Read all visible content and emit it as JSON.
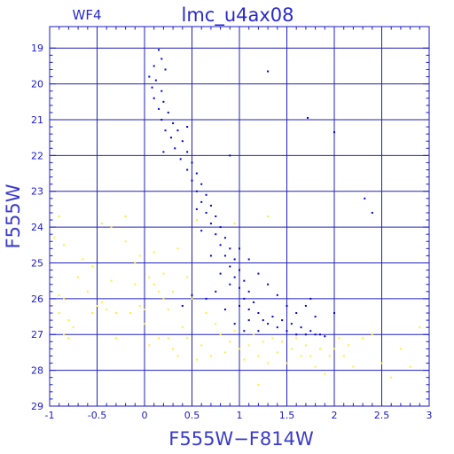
{
  "chart_data": {
    "type": "scatter",
    "title": "lmc_u4ax08",
    "subtitle": "WF4",
    "xlabel": "F555W−F814W",
    "ylabel": "F555W",
    "xlim": [
      -1,
      3
    ],
    "ylim": [
      29,
      18.4
    ],
    "y_inverted": true,
    "grid": true,
    "x_ticks": [
      "-1",
      "-0.5",
      "0",
      "0.5",
      "1",
      "1.5",
      "2",
      "2.5",
      "3"
    ],
    "x_tick_values": [
      -1,
      -0.5,
      0,
      0.5,
      1,
      1.5,
      2,
      2.5,
      3
    ],
    "y_ticks": [
      "19",
      "20",
      "21",
      "22",
      "23",
      "24",
      "25",
      "26",
      "27",
      "28",
      "29"
    ],
    "y_tick_values": [
      19,
      20,
      21,
      22,
      23,
      24,
      25,
      26,
      27,
      28,
      29
    ],
    "colors": {
      "frame": "#1a1acc",
      "grid": "#2222bb",
      "selected": "#0000dd",
      "rejected": "#ffee33"
    },
    "series": [
      {
        "color": "#ffee33",
        "points": [
          [
            -0.9,
            23.7
          ],
          [
            -0.95,
            24.3
          ],
          [
            -0.85,
            24.5
          ],
          [
            -0.9,
            25.9
          ],
          [
            -0.85,
            26.0
          ],
          [
            -0.9,
            26.4
          ],
          [
            -0.8,
            26.6
          ],
          [
            -0.85,
            27.0
          ],
          [
            -0.8,
            27.1
          ],
          [
            -0.7,
            25.4
          ],
          [
            -0.75,
            26.8
          ],
          [
            -0.6,
            25.8
          ],
          [
            -0.55,
            26.4
          ],
          [
            -0.5,
            26.2
          ],
          [
            -0.65,
            24.9
          ],
          [
            -0.55,
            25.1
          ],
          [
            -0.45,
            23.9
          ],
          [
            -0.45,
            26.1
          ],
          [
            -0.4,
            26.3
          ],
          [
            -0.35,
            25.5
          ],
          [
            -0.3,
            26.4
          ],
          [
            -0.3,
            27.1
          ],
          [
            -0.2,
            24.4
          ],
          [
            -0.15,
            26.4
          ],
          [
            -0.1,
            25.0
          ],
          [
            -0.1,
            25.6
          ],
          [
            -0.05,
            24.8
          ],
          [
            -0.05,
            26.2
          ],
          [
            0.0,
            26.3
          ],
          [
            0.0,
            26.7
          ],
          [
            0.05,
            25.4
          ],
          [
            0.05,
            27.3
          ],
          [
            0.1,
            25.6
          ],
          [
            0.1,
            24.7
          ],
          [
            0.15,
            27.1
          ],
          [
            0.15,
            25.8
          ],
          [
            0.2,
            25.3
          ],
          [
            0.2,
            26.0
          ],
          [
            0.25,
            26.3
          ],
          [
            0.25,
            27.1
          ],
          [
            0.3,
            25.8
          ],
          [
            0.3,
            27.4
          ],
          [
            0.35,
            24.6
          ],
          [
            0.35,
            27.6
          ],
          [
            0.4,
            26.8
          ],
          [
            0.45,
            25.4
          ],
          [
            0.45,
            27.1
          ],
          [
            0.5,
            26.0
          ],
          [
            0.55,
            27.7
          ],
          [
            0.6,
            27.3
          ],
          [
            0.65,
            26.4
          ],
          [
            0.7,
            27.6
          ],
          [
            0.75,
            26.7
          ],
          [
            0.8,
            27.0
          ],
          [
            0.85,
            27.5
          ],
          [
            0.9,
            27.2
          ],
          [
            0.95,
            26.9
          ],
          [
            1.0,
            27.4
          ],
          [
            1.05,
            27.7
          ],
          [
            1.1,
            27.3
          ],
          [
            1.15,
            27.0
          ],
          [
            1.2,
            27.6
          ],
          [
            1.25,
            27.2
          ],
          [
            1.3,
            27.8
          ],
          [
            1.35,
            27.1
          ],
          [
            1.4,
            27.5
          ],
          [
            1.45,
            27.2
          ],
          [
            1.5,
            27.8
          ],
          [
            1.55,
            27.4
          ],
          [
            1.6,
            27.1
          ],
          [
            1.65,
            27.6
          ],
          [
            1.7,
            27.3
          ],
          [
            1.75,
            27.6
          ],
          [
            1.8,
            27.9
          ],
          [
            1.85,
            27.4
          ],
          [
            1.9,
            28.1
          ],
          [
            1.95,
            27.6
          ],
          [
            2.0,
            27.4
          ],
          [
            2.05,
            27.1
          ],
          [
            2.1,
            27.6
          ],
          [
            2.15,
            27.3
          ],
          [
            2.2,
            27.9
          ],
          [
            2.3,
            27.1
          ],
          [
            2.4,
            27.0
          ],
          [
            2.5,
            27.8
          ],
          [
            2.6,
            28.2
          ],
          [
            2.7,
            27.4
          ],
          [
            2.8,
            27.9
          ],
          [
            2.9,
            26.8
          ],
          [
            1.2,
            28.4
          ],
          [
            0.95,
            23.9
          ],
          [
            1.3,
            23.7
          ],
          [
            0.55,
            23.8
          ],
          [
            0.65,
            23.1
          ],
          [
            -0.2,
            23.7
          ],
          [
            -0.35,
            24.0
          ]
        ]
      },
      {
        "color": "#0000dd",
        "points": [
          [
            0.15,
            19.05
          ],
          [
            0.18,
            19.3
          ],
          [
            0.1,
            19.5
          ],
          [
            0.22,
            19.6
          ],
          [
            0.05,
            19.8
          ],
          [
            0.12,
            19.9
          ],
          [
            0.08,
            20.1
          ],
          [
            0.18,
            20.2
          ],
          [
            0.1,
            20.4
          ],
          [
            0.2,
            20.5
          ],
          [
            0.15,
            20.7
          ],
          [
            0.25,
            20.8
          ],
          [
            0.18,
            21.0
          ],
          [
            0.3,
            21.1
          ],
          [
            0.22,
            21.3
          ],
          [
            0.35,
            21.3
          ],
          [
            0.28,
            21.5
          ],
          [
            0.4,
            21.6
          ],
          [
            0.32,
            21.8
          ],
          [
            0.45,
            21.9
          ],
          [
            0.38,
            22.1
          ],
          [
            0.5,
            22.2
          ],
          [
            0.45,
            22.4
          ],
          [
            0.55,
            22.5
          ],
          [
            0.5,
            22.7
          ],
          [
            0.6,
            22.8
          ],
          [
            0.55,
            23.0
          ],
          [
            0.65,
            23.1
          ],
          [
            0.6,
            23.3
          ],
          [
            0.7,
            23.4
          ],
          [
            0.65,
            23.6
          ],
          [
            0.75,
            23.7
          ],
          [
            0.7,
            23.9
          ],
          [
            0.8,
            24.0
          ],
          [
            0.75,
            24.2
          ],
          [
            0.85,
            24.3
          ],
          [
            0.8,
            24.5
          ],
          [
            0.9,
            24.6
          ],
          [
            0.85,
            24.8
          ],
          [
            0.95,
            24.9
          ],
          [
            0.9,
            25.1
          ],
          [
            1.0,
            25.2
          ],
          [
            0.95,
            25.4
          ],
          [
            1.05,
            25.5
          ],
          [
            1.0,
            25.7
          ],
          [
            1.1,
            25.8
          ],
          [
            1.05,
            26.0
          ],
          [
            1.15,
            26.1
          ],
          [
            1.1,
            26.3
          ],
          [
            1.2,
            26.4
          ],
          [
            1.25,
            26.6
          ],
          [
            1.3,
            26.7
          ],
          [
            1.35,
            26.5
          ],
          [
            1.4,
            26.8
          ],
          [
            1.45,
            26.6
          ],
          [
            1.5,
            26.9
          ],
          [
            1.55,
            26.7
          ],
          [
            1.6,
            27.0
          ],
          [
            1.65,
            26.8
          ],
          [
            1.7,
            27.0
          ],
          [
            1.75,
            26.9
          ],
          [
            1.8,
            27.0
          ],
          [
            1.85,
            27.0
          ],
          [
            1.9,
            27.05
          ],
          [
            0.55,
            23.5
          ],
          [
            0.6,
            24.1
          ],
          [
            0.7,
            24.8
          ],
          [
            0.8,
            25.3
          ],
          [
            0.9,
            25.6
          ],
          [
            1.0,
            26.2
          ],
          [
            1.1,
            26.6
          ],
          [
            1.2,
            26.9
          ],
          [
            0.75,
            25.8
          ],
          [
            0.85,
            26.3
          ],
          [
            0.95,
            26.7
          ],
          [
            1.05,
            26.9
          ],
          [
            0.65,
            26.0
          ],
          [
            0.5,
            25.9
          ],
          [
            0.4,
            26.2
          ],
          [
            1.3,
            25.6
          ],
          [
            1.4,
            25.9
          ],
          [
            1.5,
            26.2
          ],
          [
            1.6,
            26.4
          ],
          [
            1.2,
            25.3
          ],
          [
            1.1,
            24.9
          ],
          [
            1.0,
            24.6
          ],
          [
            1.7,
            26.2
          ],
          [
            1.8,
            26.5
          ],
          [
            2.0,
            26.4
          ],
          [
            1.75,
            26.0
          ],
          [
            1.3,
            19.65
          ],
          [
            1.72,
            20.95
          ],
          [
            2.0,
            21.35
          ],
          [
            2.32,
            23.2
          ],
          [
            2.4,
            23.6
          ],
          [
            0.45,
            21.2
          ],
          [
            0.2,
            21.9
          ],
          [
            0.9,
            22.0
          ]
        ]
      }
    ]
  }
}
